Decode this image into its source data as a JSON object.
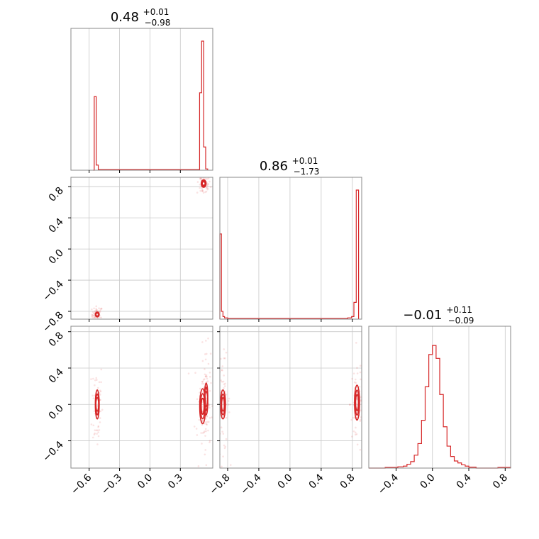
{
  "colors": {
    "series": "#d62728",
    "grid": "#c8c8c8",
    "frame": "#888888",
    "tick": "#000000"
  },
  "chart_data": {
    "type": "corner",
    "grid_on": true,
    "parameters": [
      {
        "id": "p0",
        "title": {
          "median": "0.48",
          "plus": "+0.01",
          "minus": "−0.98"
        },
        "range": [
          -0.78,
          0.62
        ],
        "ticks": [
          -0.6,
          -0.3,
          0.0,
          0.3
        ],
        "tick_labels": [
          "−0.6",
          "−0.3",
          "0.0",
          "0.3"
        ]
      },
      {
        "id": "p1",
        "title": {
          "median": "0.86",
          "plus": "+0.01",
          "minus": "−1.73"
        },
        "range": [
          -0.9,
          0.92
        ],
        "ticks": [
          -0.8,
          -0.4,
          0.0,
          0.4,
          0.8
        ],
        "tick_labels": [
          "−0.8",
          "−0.4",
          "0.0",
          "0.4",
          "0.8"
        ]
      },
      {
        "id": "p2",
        "title": {
          "median": "−0.01",
          "plus": "+0.11",
          "minus": "−0.09"
        },
        "range": [
          -0.7,
          0.86
        ],
        "ticks": [
          -0.4,
          0.0,
          0.4,
          0.8
        ],
        "tick_labels": [
          "−0.4",
          "0.0",
          "0.4",
          "0.8"
        ]
      }
    ],
    "histograms": [
      {
        "param": 0,
        "bins": [
          [
            -0.56,
            -0.55,
            0
          ],
          [
            -0.55,
            -0.53,
            0.57
          ],
          [
            -0.53,
            -0.51,
            0.04
          ],
          [
            -0.51,
            -0.49,
            0.005
          ],
          [
            0.47,
            0.49,
            0.005
          ],
          [
            0.49,
            0.51,
            0.6
          ],
          [
            0.51,
            0.53,
            1.0
          ],
          [
            0.53,
            0.55,
            0.18
          ],
          [
            0.55,
            0.57,
            0.01
          ]
        ]
      },
      {
        "param": 1,
        "bins": [
          [
            -0.9,
            -0.88,
            0.66
          ],
          [
            -0.88,
            -0.86,
            0.06
          ],
          [
            -0.86,
            -0.84,
            0.02
          ],
          [
            -0.84,
            -0.8,
            0.01
          ],
          [
            -0.8,
            0.74,
            0.005
          ],
          [
            0.74,
            0.79,
            0.01
          ],
          [
            0.79,
            0.82,
            0.02
          ],
          [
            0.82,
            0.85,
            0.13
          ],
          [
            0.85,
            0.88,
            1.0
          ]
        ]
      },
      {
        "param": 2,
        "bins": [
          [
            -0.7,
            -0.52,
            0.0
          ],
          [
            -0.52,
            -0.38,
            0.005
          ],
          [
            -0.38,
            -0.32,
            0.01
          ],
          [
            -0.32,
            -0.28,
            0.015
          ],
          [
            -0.28,
            -0.24,
            0.03
          ],
          [
            -0.24,
            -0.2,
            0.05
          ],
          [
            -0.2,
            -0.16,
            0.1
          ],
          [
            -0.16,
            -0.12,
            0.19
          ],
          [
            -0.12,
            -0.08,
            0.37
          ],
          [
            -0.08,
            -0.04,
            0.63
          ],
          [
            -0.04,
            0.0,
            0.88
          ],
          [
            0.0,
            0.04,
            0.95
          ],
          [
            0.04,
            0.08,
            0.85
          ],
          [
            0.08,
            0.12,
            0.57
          ],
          [
            0.12,
            0.16,
            0.32
          ],
          [
            0.16,
            0.2,
            0.17
          ],
          [
            0.2,
            0.24,
            0.09
          ],
          [
            0.24,
            0.28,
            0.055
          ],
          [
            0.28,
            0.32,
            0.04
          ],
          [
            0.32,
            0.36,
            0.025
          ],
          [
            0.36,
            0.4,
            0.015
          ],
          [
            0.4,
            0.48,
            0.007
          ],
          [
            0.48,
            0.72,
            0.0
          ],
          [
            0.72,
            0.86,
            0.005
          ]
        ]
      }
    ],
    "density_panels": [
      {
        "x_param": 0,
        "y_param": 1,
        "clusters": [
          {
            "cx": -0.52,
            "cy": -0.84,
            "sx": 0.012,
            "sy": 0.02
          },
          {
            "cx": 0.53,
            "cy": 0.84,
            "sx": 0.015,
            "sy": 0.03
          }
        ]
      },
      {
        "x_param": 0,
        "y_param": 2,
        "clusters": [
          {
            "cx": -0.52,
            "cy": 0.0,
            "sx": 0.012,
            "sy": 0.1
          },
          {
            "cx": 0.52,
            "cy": -0.02,
            "sx": 0.018,
            "sy": 0.12
          },
          {
            "cx": 0.555,
            "cy": 0.06,
            "sx": 0.01,
            "sy": 0.11
          }
        ]
      },
      {
        "x_param": 1,
        "y_param": 2,
        "clusters": [
          {
            "cx": -0.86,
            "cy": 0.0,
            "sx": 0.02,
            "sy": 0.1
          },
          {
            "cx": 0.86,
            "cy": 0.02,
            "sx": 0.02,
            "sy": 0.12
          }
        ]
      }
    ]
  }
}
